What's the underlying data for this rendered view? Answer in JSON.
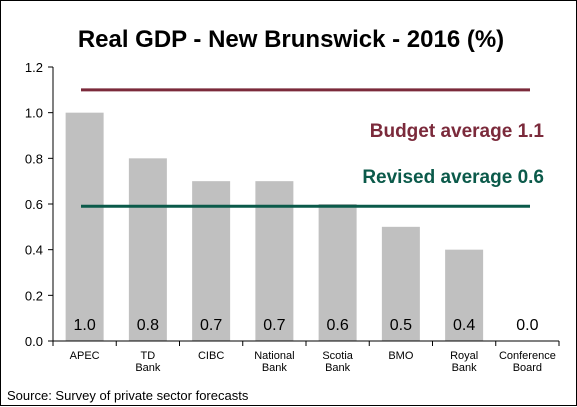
{
  "chart_data": {
    "type": "bar",
    "title": "Real GDP - New Brunswick - 2016 (%)",
    "categories": [
      [
        "APEC"
      ],
      [
        "TD",
        "Bank"
      ],
      [
        "CIBC"
      ],
      [
        "National",
        "Bank"
      ],
      [
        "Scotia",
        "Bank"
      ],
      [
        "BMO"
      ],
      [
        "Royal",
        "Bank"
      ],
      [
        "Conference",
        "Board"
      ]
    ],
    "values": [
      1.0,
      0.8,
      0.7,
      0.7,
      0.6,
      0.5,
      0.4,
      0.0
    ],
    "data_labels": [
      "1.0",
      "0.8",
      "0.7",
      "0.7",
      "0.6",
      "0.5",
      "0.4",
      "0.0"
    ],
    "ylim": [
      0,
      1.2
    ],
    "yticks": [
      "0.0",
      "0.2",
      "0.4",
      "0.6",
      "0.8",
      "1.0",
      "1.2"
    ],
    "grid": false,
    "bar_color": "#c0c0c0",
    "reference_lines": [
      {
        "label": "Budget average 1.1",
        "value": 1.1,
        "color": "#7b2a3b"
      },
      {
        "label": "Revised average 0.6",
        "value": 0.59,
        "color": "#0b5a4a"
      }
    ],
    "source": "Source: Survey of private sector forecasts"
  }
}
